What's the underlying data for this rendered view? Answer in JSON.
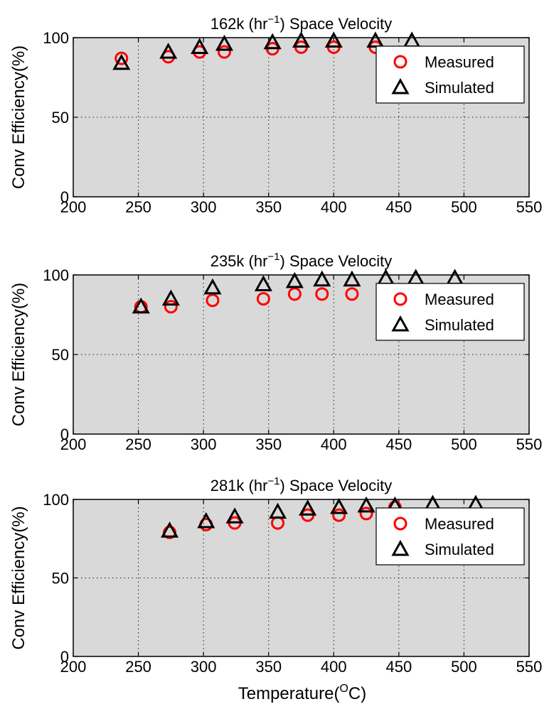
{
  "colors": {
    "axes_background": "#d9d9d9",
    "measured": "#ff0000",
    "simulated": "#000000",
    "legend_background": "#ffffff"
  },
  "xlabel": {
    "prefix": "Temperature(",
    "superscript": "O",
    "suffix": "C)"
  },
  "chart_data": [
    {
      "type": "scatter",
      "title": {
        "prefix": "162k (hr",
        "superscript": "−1",
        "suffix": ") Space Velocity"
      },
      "ylabel": "Conv Efficiency(%)",
      "xlim": [
        200,
        550
      ],
      "ylim": [
        0,
        100
      ],
      "xticks": [
        200,
        250,
        300,
        350,
        400,
        450,
        500,
        550
      ],
      "yticks": [
        0,
        50,
        100
      ],
      "grid": true,
      "legend_placement": "top-right",
      "series": [
        {
          "name": "Measured",
          "marker": "circle",
          "color": "#ff0000",
          "x": [
            237,
            273,
            297,
            316,
            353,
            375,
            400,
            432
          ],
          "y": [
            87,
            88,
            91,
            91,
            93,
            94,
            94,
            94
          ]
        },
        {
          "name": "Simulated",
          "marker": "triangle",
          "color": "#000000",
          "x": [
            237,
            273,
            297,
            316,
            353,
            375,
            400,
            432,
            460
          ],
          "y": [
            84,
            91,
            94,
            96,
            97,
            98,
            98,
            98,
            98
          ]
        }
      ]
    },
    {
      "type": "scatter",
      "title": {
        "prefix": "235k (hr",
        "superscript": "−1",
        "suffix": ") Space Velocity"
      },
      "ylabel": "Conv Efficiency(%)",
      "xlim": [
        200,
        550
      ],
      "ylim": [
        0,
        100
      ],
      "xticks": [
        200,
        250,
        300,
        350,
        400,
        450,
        500,
        550
      ],
      "yticks": [
        0,
        50,
        100
      ],
      "grid": true,
      "legend_placement": "top-right",
      "series": [
        {
          "name": "Measured",
          "marker": "circle",
          "color": "#ff0000",
          "x": [
            252,
            275,
            307,
            346,
            370,
            391,
            414
          ],
          "y": [
            80,
            80,
            84,
            85,
            88,
            88,
            88
          ]
        },
        {
          "name": "Simulated",
          "marker": "triangle",
          "color": "#000000",
          "x": [
            252,
            275,
            307,
            346,
            370,
            391,
            414,
            440,
            463,
            493
          ],
          "y": [
            80,
            85,
            92,
            94,
            96,
            97,
            97,
            98,
            98,
            98
          ]
        }
      ]
    },
    {
      "type": "scatter",
      "title": {
        "prefix": "281k (hr",
        "superscript": "−1",
        "suffix": ") Space Velocity"
      },
      "ylabel": "Conv Efficiency(%)",
      "xlim": [
        200,
        550
      ],
      "ylim": [
        0,
        100
      ],
      "xticks": [
        200,
        250,
        300,
        350,
        400,
        450,
        500,
        550
      ],
      "yticks": [
        0,
        50,
        100
      ],
      "grid": true,
      "legend_placement": "top-right",
      "series": [
        {
          "name": "Measured",
          "marker": "circle",
          "color": "#ff0000",
          "x": [
            274,
            302,
            324,
            357,
            380,
            404,
            425,
            447
          ],
          "y": [
            79,
            84,
            85,
            85,
            90,
            90,
            91,
            95
          ]
        },
        {
          "name": "Simulated",
          "marker": "triangle",
          "color": "#000000",
          "x": [
            274,
            302,
            324,
            357,
            380,
            404,
            425,
            447,
            476,
            509
          ],
          "y": [
            80,
            86,
            89,
            92,
            94,
            95,
            96,
            96,
            97,
            97
          ]
        }
      ]
    }
  ]
}
